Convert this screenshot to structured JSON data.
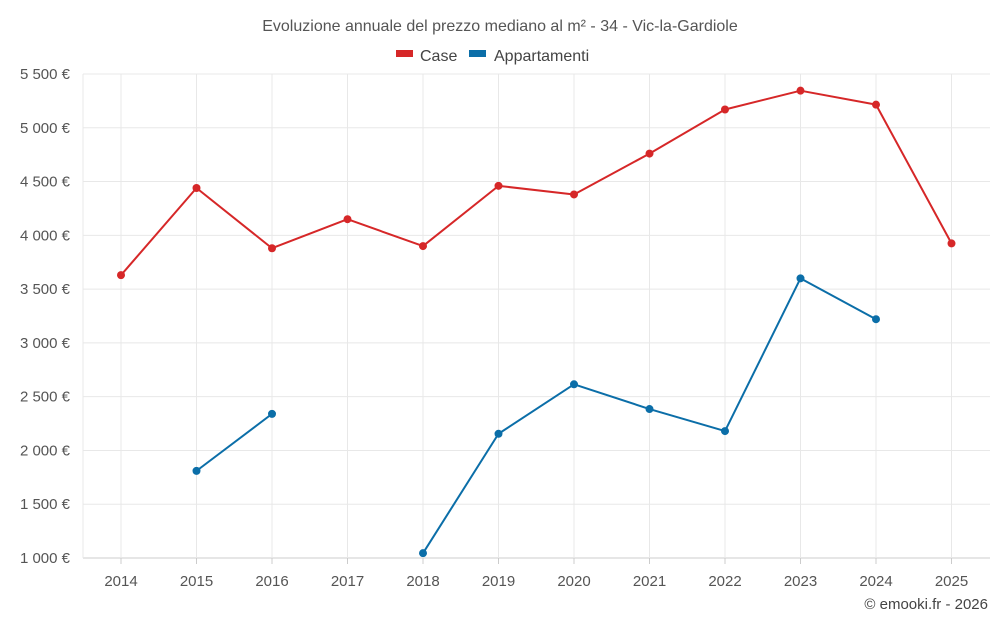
{
  "chart_data": {
    "type": "line",
    "title": "Evoluzione annuale del prezzo mediano al m² - 34 - Vic-la-Gardiole",
    "categories": [
      "2014",
      "2015",
      "2016",
      "2017",
      "2018",
      "2019",
      "2020",
      "2021",
      "2022",
      "2023",
      "2024",
      "2025"
    ],
    "series": [
      {
        "name": "Case",
        "color": "#d62728",
        "values": [
          3630,
          4440,
          3880,
          4150,
          3900,
          4460,
          4380,
          4760,
          5170,
          5345,
          5215,
          3925
        ]
      },
      {
        "name": "Appartamenti",
        "color": "#0b6ea8",
        "values": [
          null,
          1810,
          2340,
          null,
          1045,
          2155,
          2615,
          2385,
          2180,
          3600,
          3220,
          null
        ]
      }
    ],
    "ylim": [
      1000,
      5500
    ],
    "yticks": [
      1000,
      1500,
      2000,
      2500,
      3000,
      3500,
      4000,
      4500,
      5000,
      5500
    ],
    "yticklabels": [
      "1 000 €",
      "1 500 €",
      "2 000 €",
      "2 500 €",
      "3 000 €",
      "3 500 €",
      "4 000 €",
      "4 500 €",
      "5 000 €",
      "5 500 €"
    ],
    "xlabel": "",
    "ylabel": "",
    "grid": true,
    "legend_position": "top-center"
  },
  "credit": "© emooki.fr - 2026"
}
